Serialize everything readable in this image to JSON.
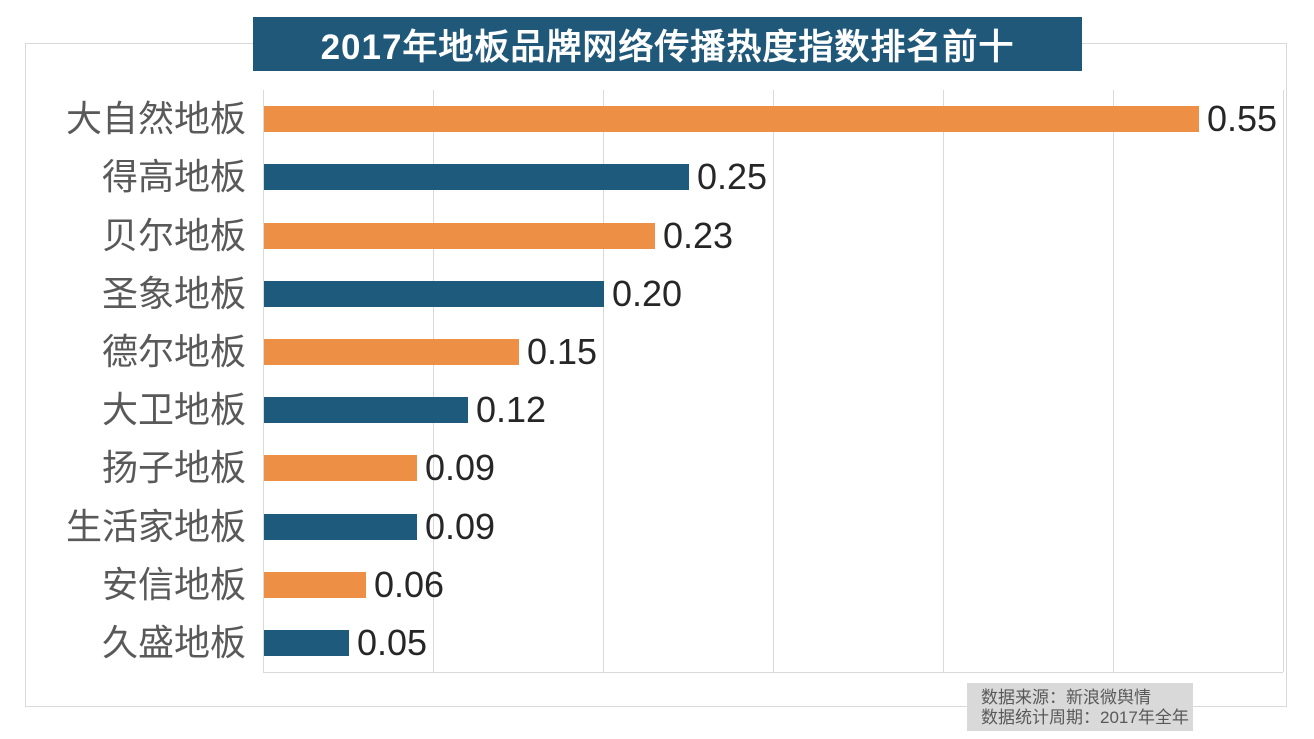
{
  "chart_data": {
    "type": "bar",
    "orientation": "horizontal",
    "title": "2017年地板品牌网络传播热度指数排名前十",
    "categories": [
      "大自然地板",
      "得高地板",
      "贝尔地板",
      "圣象地板",
      "德尔地板",
      "大卫地板",
      "扬子地板",
      "生活家地板",
      "安信地板",
      "久盛地板"
    ],
    "values": [
      0.55,
      0.25,
      0.23,
      0.2,
      0.15,
      0.12,
      0.09,
      0.09,
      0.06,
      0.05
    ],
    "value_labels": [
      "0.55",
      "0.25",
      "0.23",
      "0.20",
      "0.15",
      "0.12",
      "0.09",
      "0.09",
      "0.06",
      "0.05"
    ],
    "xlim": [
      0,
      0.6
    ],
    "gridline_interval": 0.1,
    "grid": true,
    "legend": "none",
    "data_labels": "outside-end"
  },
  "colors": {
    "bar_alternating": [
      "#EE8F46",
      "#1E5A7C"
    ],
    "title_background": "#20587A",
    "title_text": "#ffffff",
    "gridline": "#d9d9d9",
    "frame_border": "#d9d9d9",
    "category_text": "#595959",
    "value_text": "#262626",
    "source_background": "#d9d9d9",
    "source_text": "#595959"
  },
  "source_note": {
    "line1": "数据来源：新浪微舆情",
    "line2": "数据统计周期：2017年全年"
  }
}
